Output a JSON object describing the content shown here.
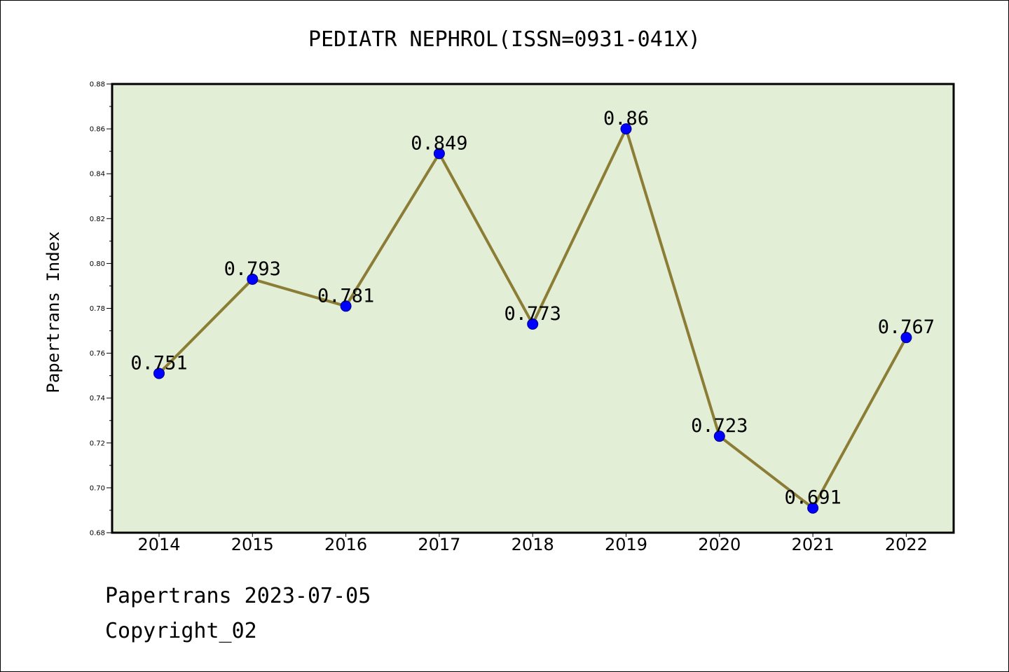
{
  "colors": {
    "background": "#ffffff",
    "plot_background": "#e2efd6",
    "line": "#8b7d35",
    "marker": "#0000ff",
    "marker_edge": "#00008b",
    "axis": "#000000",
    "text": "#000000"
  },
  "chart_data": {
    "type": "line",
    "title": "PEDIATR NEPHROL(ISSN=0931-041X)",
    "xlabel": "",
    "ylabel": "Papertrans Index",
    "categories": [
      "2014",
      "2015",
      "2016",
      "2017",
      "2018",
      "2019",
      "2020",
      "2021",
      "2022"
    ],
    "series": [
      {
        "name": "Papertrans Index",
        "values": [
          0.751,
          0.793,
          0.781,
          0.849,
          0.773,
          0.86,
          0.723,
          0.691,
          0.767
        ],
        "data_labels": [
          "0.751",
          "0.793",
          "0.781",
          "0.849",
          "0.773",
          "0.86",
          "0.723",
          "0.691",
          "0.767"
        ]
      }
    ],
    "ylim": [
      0.68,
      0.88
    ],
    "y_ticks": [
      "0.68",
      "0.70",
      "0.72",
      "0.74",
      "0.76",
      "0.78",
      "0.80",
      "0.82",
      "0.84",
      "0.86",
      "0.88"
    ],
    "grid": false,
    "legend": "none"
  },
  "footer": {
    "line1": "Papertrans 2023-07-05",
    "line2": "Copyright_02"
  }
}
